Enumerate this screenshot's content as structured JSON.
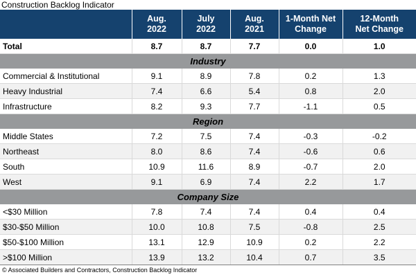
{
  "page": {
    "title": "Construction Backlog Indicator",
    "footer_note": "© Associated Builders and Contractors, Construction Backlog Indicator"
  },
  "colors": {
    "header_bg": "#15426E",
    "header_text": "#FFFFFF",
    "section_bg": "#97999B",
    "row_alt_bg": "#F1F1F1",
    "grid_line": "#D9D9D9",
    "bottom_border": "#808080"
  },
  "chart_data": {
    "type": "table",
    "title": "Construction Backlog Indicator",
    "columns": [
      "Aug. 2022",
      "July 2022",
      "Aug. 2021",
      "1-Month Net Change",
      "12-Month Net Change"
    ],
    "header_display": [
      "Aug.\n2022",
      "July\n2022",
      "Aug.\n2021",
      "1-Month Net\nChange",
      "12-Month\nNet Change"
    ],
    "sections": [
      {
        "name": "",
        "rows": [
          {
            "label": "Total",
            "values": [
              8.7,
              8.7,
              7.7,
              0.0,
              1.0
            ],
            "bold": true
          }
        ]
      },
      {
        "name": "Industry",
        "rows": [
          {
            "label": "Commercial & Institutional",
            "values": [
              9.1,
              8.9,
              7.8,
              0.2,
              1.3
            ]
          },
          {
            "label": "Heavy Industrial",
            "values": [
              7.4,
              6.6,
              5.4,
              0.8,
              2.0
            ]
          },
          {
            "label": "Infrastructure",
            "values": [
              8.2,
              9.3,
              7.7,
              -1.1,
              0.5
            ]
          }
        ]
      },
      {
        "name": "Region",
        "rows": [
          {
            "label": "Middle States",
            "values": [
              7.2,
              7.5,
              7.4,
              -0.3,
              -0.2
            ]
          },
          {
            "label": "Northeast",
            "values": [
              8.0,
              8.6,
              7.4,
              -0.6,
              0.6
            ]
          },
          {
            "label": "South",
            "values": [
              10.9,
              11.6,
              8.9,
              -0.7,
              2.0
            ]
          },
          {
            "label": "West",
            "values": [
              9.1,
              6.9,
              7.4,
              2.2,
              1.7
            ]
          }
        ]
      },
      {
        "name": "Company Size",
        "rows": [
          {
            "label": "<$30 Million",
            "values": [
              7.8,
              7.4,
              7.4,
              0.4,
              0.4
            ]
          },
          {
            "label": "$30-$50 Million",
            "values": [
              10.0,
              10.8,
              7.5,
              -0.8,
              2.5
            ]
          },
          {
            "label": "$50-$100 Million",
            "values": [
              13.1,
              12.9,
              10.9,
              0.2,
              2.2
            ]
          },
          {
            "label": ">$100 Million",
            "values": [
              13.9,
              13.2,
              10.4,
              0.7,
              3.5
            ]
          }
        ]
      }
    ]
  }
}
